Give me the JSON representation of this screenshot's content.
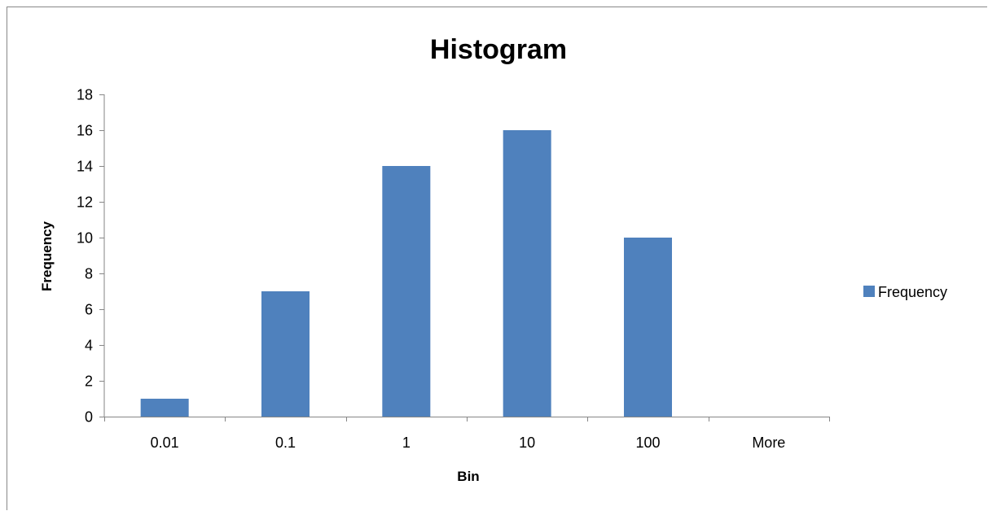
{
  "chart_data": {
    "type": "bar",
    "title": "Histogram",
    "xlabel": "Bin",
    "ylabel": "Frequency",
    "categories": [
      "0.01",
      "0.1",
      "1",
      "10",
      "100",
      "More"
    ],
    "series": [
      {
        "name": "Frequency",
        "values": [
          1,
          7,
          14,
          16,
          10,
          0
        ],
        "color": "#4F81BD"
      }
    ],
    "ylim": [
      0,
      18
    ],
    "yticks": [
      0,
      2,
      4,
      6,
      8,
      10,
      12,
      14,
      16,
      18
    ],
    "grid": false,
    "legend": "right"
  }
}
